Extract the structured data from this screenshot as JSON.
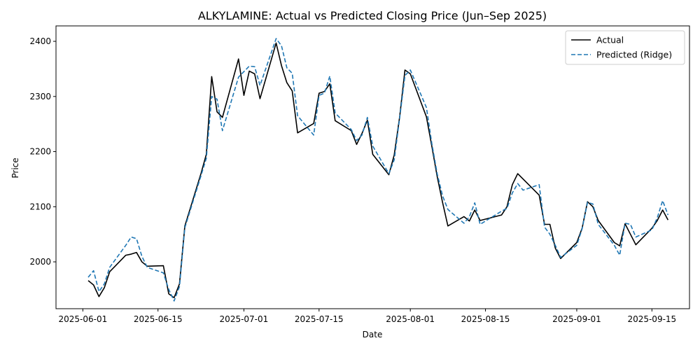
{
  "chart_data": {
    "type": "line",
    "title": "ALKYLAMINE: Actual vs Predicted Closing Price (Jun–Sep 2025)",
    "xlabel": "Date",
    "ylabel": "Price",
    "xlim": [
      "2025-05-27",
      "2025-09-22"
    ],
    "ylim": [
      1915,
      2428
    ],
    "x_ticks": [
      "2025-06-01",
      "2025-06-15",
      "2025-07-01",
      "2025-07-15",
      "2025-08-01",
      "2025-08-15",
      "2025-09-01",
      "2025-09-15"
    ],
    "y_ticks": [
      2000,
      2100,
      2200,
      2300,
      2400
    ],
    "grid": false,
    "legend_position": "top-right",
    "series": [
      {
        "name": "Actual",
        "color": "#000000",
        "style": "solid",
        "points": [
          [
            "2025-06-02",
            1966
          ],
          [
            "2025-06-03",
            1958
          ],
          [
            "2025-06-04",
            1937
          ],
          [
            "2025-06-05",
            1953
          ],
          [
            "2025-06-06",
            1982
          ],
          [
            "2025-06-09",
            2012
          ],
          [
            "2025-06-10",
            2014
          ],
          [
            "2025-06-11",
            2017
          ],
          [
            "2025-06-12",
            2000
          ],
          [
            "2025-06-13",
            1992
          ],
          [
            "2025-06-16",
            1993
          ],
          [
            "2025-06-17",
            1942
          ],
          [
            "2025-06-18",
            1935
          ],
          [
            "2025-06-19",
            1960
          ],
          [
            "2025-06-20",
            2065
          ],
          [
            "2025-06-23",
            2160
          ],
          [
            "2025-06-24",
            2195
          ],
          [
            "2025-06-25",
            2336
          ],
          [
            "2025-06-26",
            2272
          ],
          [
            "2025-06-27",
            2262
          ],
          [
            "2025-06-30",
            2368
          ],
          [
            "2025-07-01",
            2302
          ],
          [
            "2025-07-02",
            2346
          ],
          [
            "2025-07-03",
            2341
          ],
          [
            "2025-07-04",
            2296
          ],
          [
            "2025-07-07",
            2397
          ],
          [
            "2025-07-08",
            2356
          ],
          [
            "2025-07-09",
            2325
          ],
          [
            "2025-07-10",
            2310
          ],
          [
            "2025-07-11",
            2234
          ],
          [
            "2025-07-14",
            2251
          ],
          [
            "2025-07-15",
            2306
          ],
          [
            "2025-07-16",
            2309
          ],
          [
            "2025-07-17",
            2323
          ],
          [
            "2025-07-18",
            2256
          ],
          [
            "2025-07-21",
            2238
          ],
          [
            "2025-07-22",
            2213
          ],
          [
            "2025-07-23",
            2233
          ],
          [
            "2025-07-24",
            2257
          ],
          [
            "2025-07-25",
            2195
          ],
          [
            "2025-07-28",
            2158
          ],
          [
            "2025-07-29",
            2194
          ],
          [
            "2025-07-30",
            2262
          ],
          [
            "2025-07-31",
            2348
          ],
          [
            "2025-08-01",
            2341
          ],
          [
            "2025-08-04",
            2263
          ],
          [
            "2025-08-05",
            2210
          ],
          [
            "2025-08-06",
            2155
          ],
          [
            "2025-08-07",
            2108
          ],
          [
            "2025-08-08",
            2065
          ],
          [
            "2025-08-11",
            2082
          ],
          [
            "2025-08-12",
            2074
          ],
          [
            "2025-08-13",
            2094
          ],
          [
            "2025-08-14",
            2075
          ],
          [
            "2025-08-18",
            2085
          ],
          [
            "2025-08-19",
            2100
          ],
          [
            "2025-08-20",
            2140
          ],
          [
            "2025-08-21",
            2160
          ],
          [
            "2025-08-25",
            2121
          ],
          [
            "2025-08-26",
            2068
          ],
          [
            "2025-08-27",
            2068
          ],
          [
            "2025-08-28",
            2025
          ],
          [
            "2025-08-29",
            2006
          ],
          [
            "2025-09-01",
            2035
          ],
          [
            "2025-09-02",
            2061
          ],
          [
            "2025-09-03",
            2109
          ],
          [
            "2025-09-04",
            2100
          ],
          [
            "2025-09-05",
            2075
          ],
          [
            "2025-09-08",
            2035
          ],
          [
            "2025-09-09",
            2029
          ],
          [
            "2025-09-10",
            2069
          ],
          [
            "2025-09-11",
            2050
          ],
          [
            "2025-09-12",
            2031
          ],
          [
            "2025-09-15",
            2061
          ],
          [
            "2025-09-16",
            2075
          ],
          [
            "2025-09-17",
            2094
          ],
          [
            "2025-09-18",
            2076
          ]
        ]
      },
      {
        "name": "Predicted (Ridge)",
        "color": "#1f77b4",
        "style": "dashed",
        "points": [
          [
            "2025-06-02",
            1972
          ],
          [
            "2025-06-03",
            1984
          ],
          [
            "2025-06-04",
            1946
          ],
          [
            "2025-06-05",
            1960
          ],
          [
            "2025-06-06",
            1990
          ],
          [
            "2025-06-09",
            2030
          ],
          [
            "2025-06-10",
            2045
          ],
          [
            "2025-06-11",
            2042
          ],
          [
            "2025-06-12",
            2010
          ],
          [
            "2025-06-13",
            1990
          ],
          [
            "2025-06-16",
            1980
          ],
          [
            "2025-06-17",
            1950
          ],
          [
            "2025-06-18",
            1929
          ],
          [
            "2025-06-19",
            1955
          ],
          [
            "2025-06-20",
            2062
          ],
          [
            "2025-06-23",
            2156
          ],
          [
            "2025-06-24",
            2188
          ],
          [
            "2025-06-25",
            2300
          ],
          [
            "2025-06-26",
            2295
          ],
          [
            "2025-06-27",
            2238
          ],
          [
            "2025-06-30",
            2335
          ],
          [
            "2025-07-01",
            2345
          ],
          [
            "2025-07-02",
            2355
          ],
          [
            "2025-07-03",
            2354
          ],
          [
            "2025-07-04",
            2320
          ],
          [
            "2025-07-07",
            2405
          ],
          [
            "2025-07-08",
            2392
          ],
          [
            "2025-07-09",
            2352
          ],
          [
            "2025-07-10",
            2342
          ],
          [
            "2025-07-11",
            2265
          ],
          [
            "2025-07-14",
            2230
          ],
          [
            "2025-07-15",
            2302
          ],
          [
            "2025-07-16",
            2306
          ],
          [
            "2025-07-17",
            2337
          ],
          [
            "2025-07-18",
            2270
          ],
          [
            "2025-07-21",
            2240
          ],
          [
            "2025-07-22",
            2220
          ],
          [
            "2025-07-23",
            2230
          ],
          [
            "2025-07-24",
            2262
          ],
          [
            "2025-07-25",
            2210
          ],
          [
            "2025-07-28",
            2160
          ],
          [
            "2025-07-29",
            2185
          ],
          [
            "2025-07-30",
            2260
          ],
          [
            "2025-07-31",
            2338
          ],
          [
            "2025-08-01",
            2348
          ],
          [
            "2025-08-04",
            2280
          ],
          [
            "2025-08-05",
            2215
          ],
          [
            "2025-08-06",
            2160
          ],
          [
            "2025-08-07",
            2120
          ],
          [
            "2025-08-08",
            2095
          ],
          [
            "2025-08-11",
            2070
          ],
          [
            "2025-08-12",
            2082
          ],
          [
            "2025-08-13",
            2107
          ],
          [
            "2025-08-14",
            2068
          ],
          [
            "2025-08-18",
            2092
          ],
          [
            "2025-08-19",
            2097
          ],
          [
            "2025-08-20",
            2125
          ],
          [
            "2025-08-21",
            2142
          ],
          [
            "2025-08-22",
            2130
          ],
          [
            "2025-08-25",
            2140
          ],
          [
            "2025-08-26",
            2063
          ],
          [
            "2025-08-27",
            2050
          ],
          [
            "2025-08-28",
            2030
          ],
          [
            "2025-08-29",
            2008
          ],
          [
            "2025-09-01",
            2030
          ],
          [
            "2025-09-02",
            2060
          ],
          [
            "2025-09-03",
            2108
          ],
          [
            "2025-09-04",
            2105
          ],
          [
            "2025-09-05",
            2068
          ],
          [
            "2025-09-08",
            2030
          ],
          [
            "2025-09-09",
            2012
          ],
          [
            "2025-09-10",
            2070
          ],
          [
            "2025-09-11",
            2068
          ],
          [
            "2025-09-12",
            2045
          ],
          [
            "2025-09-15",
            2058
          ],
          [
            "2025-09-16",
            2080
          ],
          [
            "2025-09-17",
            2111
          ],
          [
            "2025-09-18",
            2085
          ]
        ]
      }
    ]
  }
}
